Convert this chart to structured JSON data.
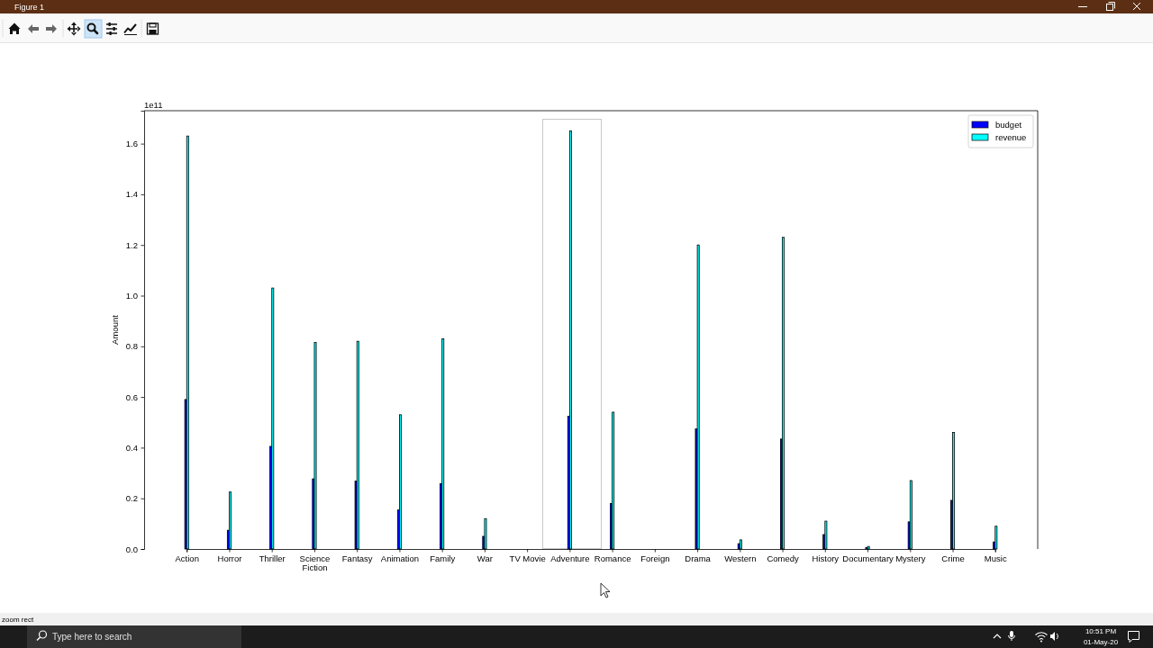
{
  "chart_data": {
    "type": "bar",
    "categories": [
      "Action",
      "Horror",
      "Thriller",
      "Science Fiction",
      "Fantasy",
      "Animation",
      "Family",
      "War",
      "TV Movie",
      "Adventure",
      "Romance",
      "Foreign",
      "Drama",
      "Western",
      "Comedy",
      "History",
      "Documentary",
      "Mystery",
      "Crime",
      "Music"
    ],
    "series": [
      {
        "name": "budget",
        "color": "#0000ff",
        "values": [
          0.59,
          0.074,
          0.405,
          0.277,
          0.268,
          0.154,
          0.258,
          0.05,
          null,
          0.524,
          0.18,
          null,
          0.474,
          0.021,
          0.434,
          0.057,
          0.005,
          0.107,
          0.192,
          0.028
        ]
      },
      {
        "name": "revenue",
        "color": "#00ffff",
        "values": [
          1.63,
          0.225,
          1.03,
          0.815,
          0.82,
          0.53,
          0.83,
          0.12,
          null,
          1.65,
          0.54,
          null,
          1.2,
          0.036,
          1.23,
          0.11,
          0.01,
          0.27,
          0.46,
          0.09
        ]
      }
    ],
    "ylabel": "Amount",
    "ylim": [
      0,
      1.73
    ],
    "yticks": [
      {
        "value": 0,
        "label": "0.0"
      },
      0.2,
      0.4,
      0.6,
      0.8,
      {
        "value": 1,
        "label": "1.0"
      },
      1.2,
      1.4,
      1.6
    ],
    "legend": "top right",
    "annotations": [
      "1e11",
      "Figure 1",
      "zoom rect",
      "Type here to search",
      "10:51 PM",
      "01-May-20"
    ]
  }
}
